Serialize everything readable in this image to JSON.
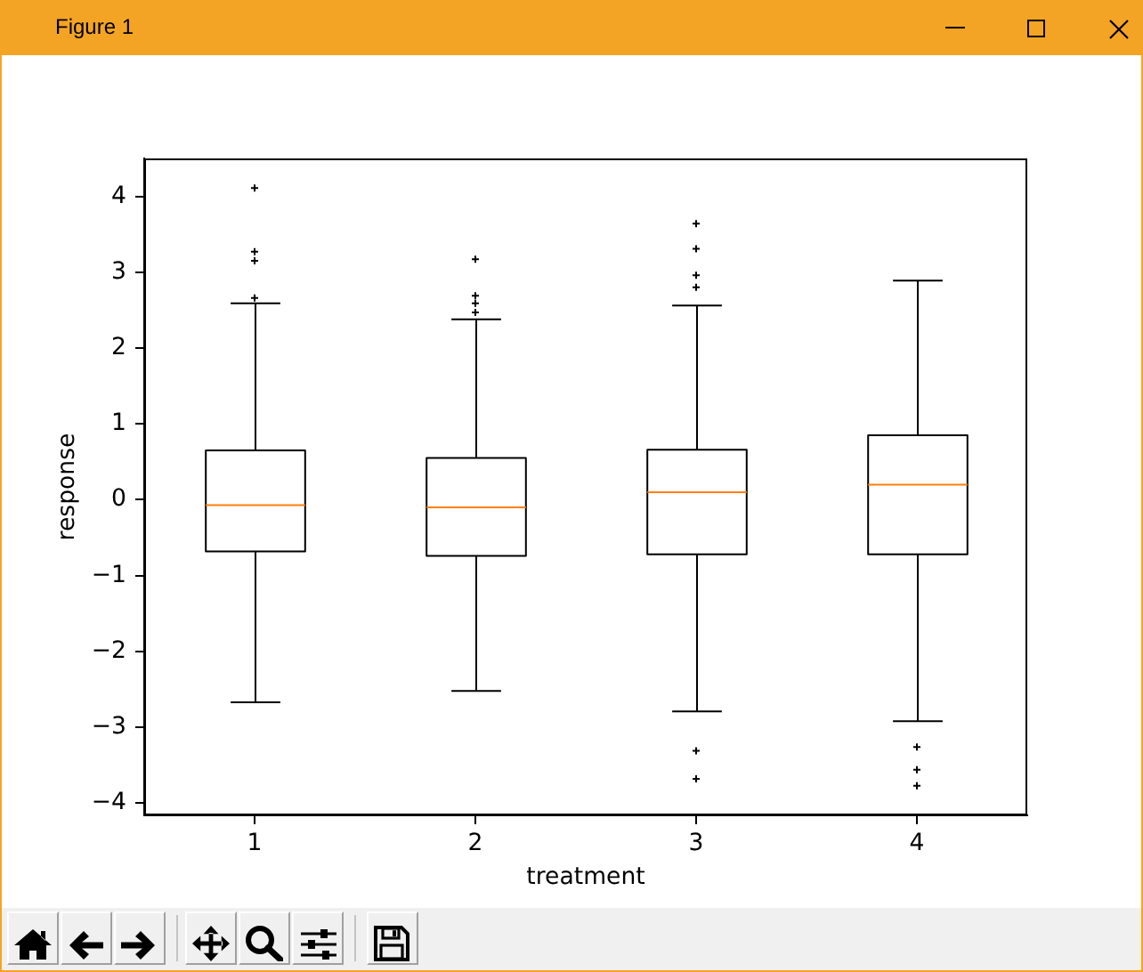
{
  "chart_data": {
    "type": "box",
    "annotations": [
      "Figure 1"
    ],
    "xlabel": "treatment",
    "ylabel": "response",
    "categories": [
      "1",
      "2",
      "3",
      "4"
    ],
    "color": "#000000",
    "marker": "cross",
    "ylim": [
      -4.16,
      4.5
    ],
    "yticks": [
      {
        "value": -4,
        "label": "−4"
      },
      {
        "value": -3,
        "label": "−3"
      },
      {
        "value": -2,
        "label": "−2"
      },
      {
        "value": -1,
        "label": "−1"
      },
      0,
      1,
      2,
      3,
      4
    ],
    "boxes": [
      {
        "low": -2.67,
        "q1": -0.68,
        "median": -0.07,
        "q3": 0.65,
        "high": 2.59,
        "outliers": [
          2.66,
          3.15,
          3.27,
          4.11
        ]
      },
      {
        "low": -2.52,
        "q1": -0.74,
        "median": -0.1,
        "q3": 0.55,
        "high": 2.38,
        "outliers": [
          2.47,
          2.59,
          2.69,
          3.17
        ]
      },
      {
        "low": -2.79,
        "q1": -0.72,
        "median": 0.1,
        "q3": 0.66,
        "high": 2.56,
        "outliers": [
          -3.68,
          -3.31,
          2.8,
          2.96,
          3.31,
          3.64
        ]
      },
      {
        "low": -2.92,
        "q1": -0.72,
        "median": 0.2,
        "q3": 0.85,
        "high": 2.89,
        "outliers": [
          -3.77,
          -3.56,
          -3.26
        ]
      }
    ]
  }
}
